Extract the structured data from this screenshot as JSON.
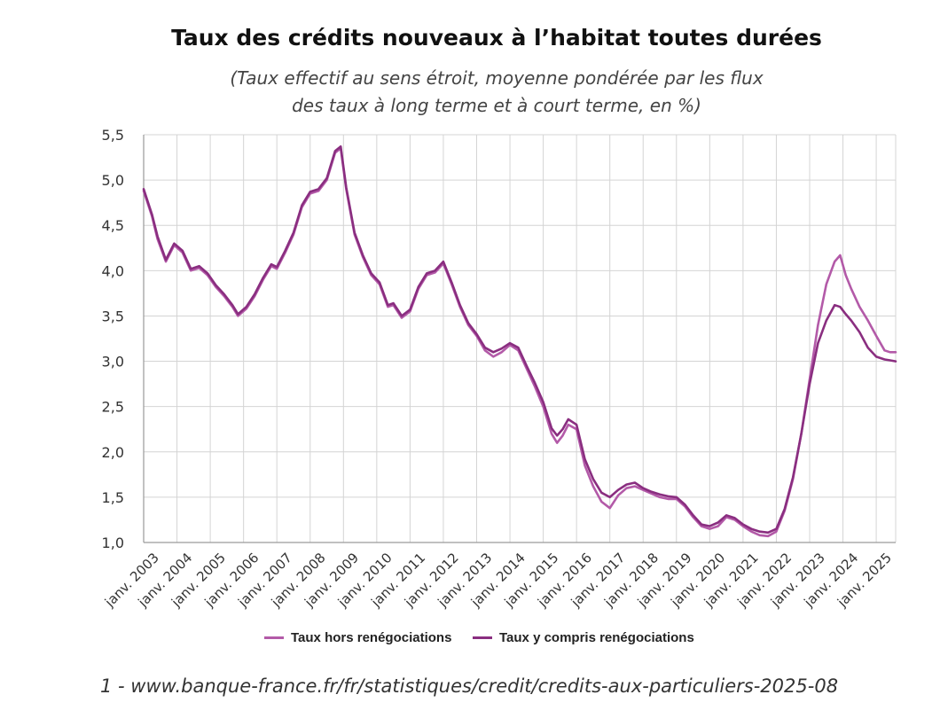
{
  "chart_data": {
    "type": "line",
    "title": "Taux des crédits nouveaux à l’habitat toutes durées",
    "subtitle_line1": "(Taux effectif au sens étroit, moyenne pondérée par les flux",
    "subtitle_line2": "des taux à long terme et à court terme, en %)",
    "ylim": [
      1.0,
      5.5
    ],
    "yticks": [
      "1,0",
      "1,5",
      "2,0",
      "2,5",
      "3,0",
      "3,5",
      "4,0",
      "4,5",
      "5,0",
      "5,5"
    ],
    "ytick_values": [
      1.0,
      1.5,
      2.0,
      2.5,
      3.0,
      3.5,
      4.0,
      4.5,
      5.0,
      5.5
    ],
    "xtick_labels": [
      "janv. 2003",
      "janv. 2004",
      "janv. 2005",
      "janv. 2006",
      "janv. 2007",
      "janv. 2008",
      "janv. 2009",
      "janv. 2010",
      "janv. 2011",
      "janv. 2012",
      "janv. 2013",
      "janv. 2014",
      "janv. 2015",
      "janv. 2016",
      "janv. 2017",
      "janv. 2018",
      "janv. 2019",
      "janv. 2020",
      "janv. 2021",
      "janv. 2022",
      "janv. 2023",
      "janv. 2024",
      "janv. 2025"
    ],
    "xlim": [
      "2003-01",
      "2025-08"
    ],
    "grid": "vertical and horizontal",
    "legend_position": "bottom",
    "series": [
      {
        "name": "Taux hors renégociations",
        "color": "#b35aa8",
        "points": [
          [
            "2003-01",
            4.88
          ],
          [
            "2003-04",
            4.6
          ],
          [
            "2003-06",
            4.35
          ],
          [
            "2003-09",
            4.1
          ],
          [
            "2003-12",
            4.28
          ],
          [
            "2004-03",
            4.2
          ],
          [
            "2004-06",
            4.0
          ],
          [
            "2004-09",
            4.03
          ],
          [
            "2004-12",
            3.95
          ],
          [
            "2005-03",
            3.82
          ],
          [
            "2005-06",
            3.72
          ],
          [
            "2005-09",
            3.6
          ],
          [
            "2005-11",
            3.5
          ],
          [
            "2006-02",
            3.58
          ],
          [
            "2006-05",
            3.72
          ],
          [
            "2006-08",
            3.9
          ],
          [
            "2006-11",
            4.05
          ],
          [
            "2007-01",
            4.02
          ],
          [
            "2007-04",
            4.2
          ],
          [
            "2007-07",
            4.4
          ],
          [
            "2007-10",
            4.7
          ],
          [
            "2008-01",
            4.85
          ],
          [
            "2008-04",
            4.88
          ],
          [
            "2008-07",
            5.0
          ],
          [
            "2008-10",
            5.3
          ],
          [
            "2008-12",
            5.35
          ],
          [
            "2009-02",
            4.9
          ],
          [
            "2009-05",
            4.4
          ],
          [
            "2009-08",
            4.15
          ],
          [
            "2009-11",
            3.95
          ],
          [
            "2010-02",
            3.85
          ],
          [
            "2010-05",
            3.6
          ],
          [
            "2010-07",
            3.62
          ],
          [
            "2010-10",
            3.48
          ],
          [
            "2011-01",
            3.55
          ],
          [
            "2011-04",
            3.8
          ],
          [
            "2011-07",
            3.95
          ],
          [
            "2011-10",
            3.98
          ],
          [
            "2012-01",
            4.08
          ],
          [
            "2012-04",
            3.85
          ],
          [
            "2012-07",
            3.6
          ],
          [
            "2012-10",
            3.4
          ],
          [
            "2013-01",
            3.28
          ],
          [
            "2013-04",
            3.12
          ],
          [
            "2013-07",
            3.05
          ],
          [
            "2013-10",
            3.1
          ],
          [
            "2014-01",
            3.18
          ],
          [
            "2014-04",
            3.12
          ],
          [
            "2014-07",
            2.92
          ],
          [
            "2014-10",
            2.72
          ],
          [
            "2015-01",
            2.5
          ],
          [
            "2015-04",
            2.2
          ],
          [
            "2015-06",
            2.1
          ],
          [
            "2015-08",
            2.18
          ],
          [
            "2015-10",
            2.3
          ],
          [
            "2016-01",
            2.25
          ],
          [
            "2016-04",
            1.85
          ],
          [
            "2016-07",
            1.62
          ],
          [
            "2016-10",
            1.45
          ],
          [
            "2017-01",
            1.38
          ],
          [
            "2017-04",
            1.52
          ],
          [
            "2017-07",
            1.6
          ],
          [
            "2017-10",
            1.62
          ],
          [
            "2018-01",
            1.58
          ],
          [
            "2018-04",
            1.54
          ],
          [
            "2018-07",
            1.5
          ],
          [
            "2018-10",
            1.48
          ],
          [
            "2019-01",
            1.48
          ],
          [
            "2019-04",
            1.4
          ],
          [
            "2019-07",
            1.28
          ],
          [
            "2019-10",
            1.18
          ],
          [
            "2020-01",
            1.15
          ],
          [
            "2020-04",
            1.18
          ],
          [
            "2020-07",
            1.28
          ],
          [
            "2020-10",
            1.25
          ],
          [
            "2021-01",
            1.18
          ],
          [
            "2021-04",
            1.12
          ],
          [
            "2021-07",
            1.08
          ],
          [
            "2021-10",
            1.07
          ],
          [
            "2022-01",
            1.12
          ],
          [
            "2022-04",
            1.35
          ],
          [
            "2022-07",
            1.7
          ],
          [
            "2022-10",
            2.2
          ],
          [
            "2023-01",
            2.8
          ],
          [
            "2023-04",
            3.4
          ],
          [
            "2023-07",
            3.85
          ],
          [
            "2023-10",
            4.1
          ],
          [
            "2023-12",
            4.17
          ],
          [
            "2024-02",
            3.95
          ],
          [
            "2024-04",
            3.8
          ],
          [
            "2024-07",
            3.6
          ],
          [
            "2024-10",
            3.45
          ],
          [
            "2025-01",
            3.28
          ],
          [
            "2025-04",
            3.12
          ],
          [
            "2025-06",
            3.1
          ],
          [
            "2025-08",
            3.1
          ]
        ]
      },
      {
        "name": "Taux y compris renégociations",
        "color": "#8a2e80",
        "points": [
          [
            "2003-01",
            4.9
          ],
          [
            "2003-04",
            4.62
          ],
          [
            "2003-06",
            4.38
          ],
          [
            "2003-09",
            4.12
          ],
          [
            "2003-12",
            4.3
          ],
          [
            "2004-03",
            4.22
          ],
          [
            "2004-06",
            4.02
          ],
          [
            "2004-09",
            4.05
          ],
          [
            "2004-12",
            3.97
          ],
          [
            "2005-03",
            3.84
          ],
          [
            "2005-06",
            3.74
          ],
          [
            "2005-09",
            3.62
          ],
          [
            "2005-11",
            3.52
          ],
          [
            "2006-02",
            3.6
          ],
          [
            "2006-05",
            3.74
          ],
          [
            "2006-08",
            3.92
          ],
          [
            "2006-11",
            4.07
          ],
          [
            "2007-01",
            4.04
          ],
          [
            "2007-04",
            4.22
          ],
          [
            "2007-07",
            4.42
          ],
          [
            "2007-10",
            4.72
          ],
          [
            "2008-01",
            4.87
          ],
          [
            "2008-04",
            4.9
          ],
          [
            "2008-07",
            5.02
          ],
          [
            "2008-10",
            5.32
          ],
          [
            "2008-12",
            5.37
          ],
          [
            "2009-02",
            4.92
          ],
          [
            "2009-05",
            4.42
          ],
          [
            "2009-08",
            4.17
          ],
          [
            "2009-11",
            3.97
          ],
          [
            "2010-02",
            3.87
          ],
          [
            "2010-05",
            3.62
          ],
          [
            "2010-07",
            3.64
          ],
          [
            "2010-10",
            3.5
          ],
          [
            "2011-01",
            3.57
          ],
          [
            "2011-04",
            3.82
          ],
          [
            "2011-07",
            3.97
          ],
          [
            "2011-10",
            4.0
          ],
          [
            "2012-01",
            4.1
          ],
          [
            "2012-04",
            3.87
          ],
          [
            "2012-07",
            3.62
          ],
          [
            "2012-10",
            3.42
          ],
          [
            "2013-01",
            3.3
          ],
          [
            "2013-04",
            3.15
          ],
          [
            "2013-07",
            3.1
          ],
          [
            "2013-10",
            3.14
          ],
          [
            "2014-01",
            3.2
          ],
          [
            "2014-04",
            3.15
          ],
          [
            "2014-07",
            2.95
          ],
          [
            "2014-10",
            2.76
          ],
          [
            "2015-01",
            2.55
          ],
          [
            "2015-04",
            2.26
          ],
          [
            "2015-06",
            2.18
          ],
          [
            "2015-08",
            2.25
          ],
          [
            "2015-10",
            2.36
          ],
          [
            "2016-01",
            2.3
          ],
          [
            "2016-04",
            1.92
          ],
          [
            "2016-07",
            1.7
          ],
          [
            "2016-10",
            1.55
          ],
          [
            "2017-01",
            1.5
          ],
          [
            "2017-04",
            1.58
          ],
          [
            "2017-07",
            1.64
          ],
          [
            "2017-10",
            1.66
          ],
          [
            "2018-01",
            1.6
          ],
          [
            "2018-04",
            1.56
          ],
          [
            "2018-07",
            1.53
          ],
          [
            "2018-10",
            1.51
          ],
          [
            "2019-01",
            1.5
          ],
          [
            "2019-04",
            1.42
          ],
          [
            "2019-07",
            1.3
          ],
          [
            "2019-10",
            1.2
          ],
          [
            "2020-01",
            1.18
          ],
          [
            "2020-04",
            1.22
          ],
          [
            "2020-07",
            1.3
          ],
          [
            "2020-10",
            1.27
          ],
          [
            "2021-01",
            1.2
          ],
          [
            "2021-04",
            1.15
          ],
          [
            "2021-07",
            1.12
          ],
          [
            "2021-10",
            1.11
          ],
          [
            "2022-01",
            1.15
          ],
          [
            "2022-04",
            1.37
          ],
          [
            "2022-07",
            1.72
          ],
          [
            "2022-10",
            2.2
          ],
          [
            "2023-01",
            2.75
          ],
          [
            "2023-04",
            3.2
          ],
          [
            "2023-07",
            3.45
          ],
          [
            "2023-10",
            3.62
          ],
          [
            "2023-12",
            3.6
          ],
          [
            "2024-02",
            3.52
          ],
          [
            "2024-04",
            3.45
          ],
          [
            "2024-07",
            3.32
          ],
          [
            "2024-10",
            3.15
          ],
          [
            "2025-01",
            3.05
          ],
          [
            "2025-04",
            3.02
          ],
          [
            "2025-06",
            3.01
          ],
          [
            "2025-08",
            3.0
          ]
        ]
      }
    ]
  },
  "source_note": "1 - www.banque-france.fr/fr/statistiques/credit/credits-aux-particuliers-2025-08"
}
